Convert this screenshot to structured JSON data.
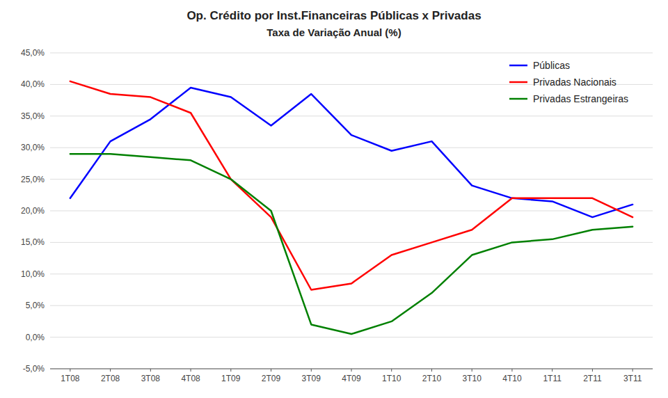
{
  "chart_data": {
    "type": "line",
    "title": "Op. Crédito por Inst.Financeiras Públicas x Privadas",
    "subtitle": "Taxa de Variação Anual (%)",
    "categories": [
      "1T08",
      "2T08",
      "3T08",
      "4T08",
      "1T09",
      "2T09",
      "3T09",
      "4T09",
      "1T10",
      "2T10",
      "3T10",
      "4T10",
      "1T11",
      "2T11",
      "3T11"
    ],
    "series": [
      {
        "name": "Públicas",
        "color": "#0000FF",
        "values": [
          22.0,
          31.0,
          34.5,
          39.5,
          38.0,
          33.5,
          38.5,
          32.0,
          29.5,
          31.0,
          24.0,
          22.0,
          21.5,
          19.0,
          21.0
        ]
      },
      {
        "name": "Privadas Nacionais",
        "color": "#FF0000",
        "values": [
          40.5,
          38.5,
          38.0,
          35.5,
          25.0,
          19.0,
          7.5,
          8.5,
          13.0,
          15.0,
          17.0,
          22.0,
          22.0,
          22.0,
          19.0
        ]
      },
      {
        "name": "Privadas Estrangeiras",
        "color": "#008000",
        "values": [
          29.0,
          29.0,
          28.5,
          28.0,
          25.0,
          20.0,
          2.0,
          0.5,
          2.5,
          7.0,
          13.0,
          15.0,
          15.5,
          17.0,
          17.5
        ]
      }
    ],
    "ylim": [
      -5.0,
      45.0
    ],
    "yticks": [
      {
        "value": -5.0,
        "label": "-5,0%"
      },
      {
        "value": 0.0,
        "label": "0,0%"
      },
      {
        "value": 5.0,
        "label": "5,0%"
      },
      {
        "value": 10.0,
        "label": "10,0%"
      },
      {
        "value": 15.0,
        "label": "15,0%"
      },
      {
        "value": 20.0,
        "label": "20,0%"
      },
      {
        "value": 25.0,
        "label": "25,0%"
      },
      {
        "value": 30.0,
        "label": "30,0%"
      },
      {
        "value": 35.0,
        "label": "35,0%"
      },
      {
        "value": 40.0,
        "label": "40,0%"
      },
      {
        "value": 45.0,
        "label": "45,0%"
      }
    ],
    "grid": true,
    "legend": "upper right"
  }
}
